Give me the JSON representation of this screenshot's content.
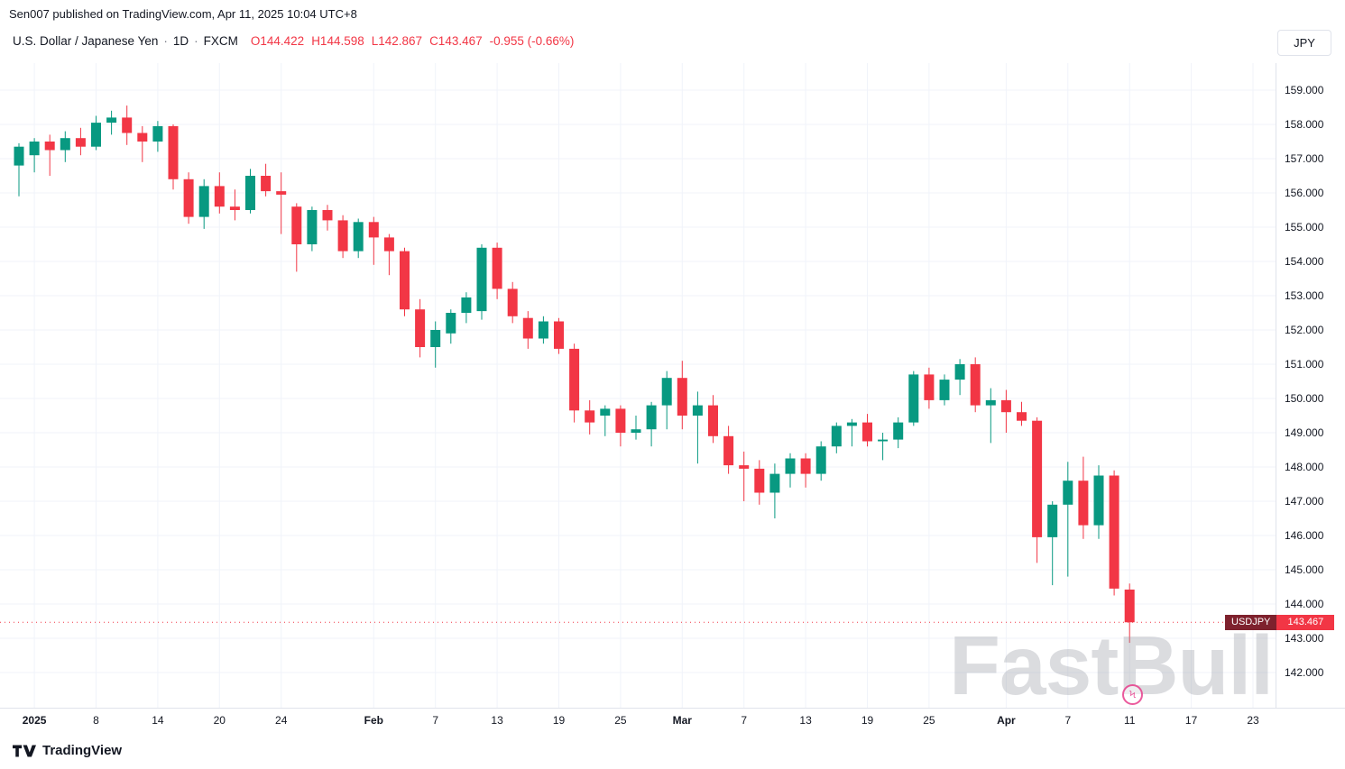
{
  "attribution": "Sen007 published on TradingView.com, Apr 11, 2025 10:04 UTC+8",
  "symbol_bar": {
    "name": "U.S. Dollar / Japanese Yen",
    "separator": "·",
    "interval": "1D",
    "exchange": "FXCM",
    "ohlc": [
      {
        "label": "O",
        "value": "144.422"
      },
      {
        "label": "H",
        "value": "144.598"
      },
      {
        "label": "L",
        "value": "142.867"
      },
      {
        "label": "C",
        "value": "143.467"
      }
    ],
    "change": "-0.955 (-0.66%)"
  },
  "currency_button": "JPY",
  "price_label": {
    "symbol": "USDJPY",
    "price": "143.467"
  },
  "watermark": "FastBull",
  "footer": {
    "brand": "TradingView"
  },
  "chart_data": {
    "type": "candlestick",
    "symbol": "USDJPY",
    "timeframe": "1D",
    "title": "U.S. Dollar / Japanese Yen · 1D · FXCM",
    "last_price": 143.467,
    "grid": true,
    "colors": {
      "up": "#089981",
      "down": "#f23645",
      "grid": "#f0f3fa",
      "axis_border": "#e0e3eb",
      "axis_text": "#131722",
      "last_price_line": "#f23645"
    },
    "y_axis": {
      "min": 142,
      "max": 159,
      "tick_step": 1,
      "tick_labels": [
        "159.000",
        "158.000",
        "157.000",
        "156.000",
        "155.000",
        "154.000",
        "153.000",
        "152.000",
        "151.000",
        "150.000",
        "149.000",
        "148.000",
        "147.000",
        "146.000",
        "145.000",
        "144.000",
        "143.000",
        "142.000"
      ]
    },
    "x_axis": {
      "labels": [
        {
          "text": "2025",
          "index": 1,
          "bold": true
        },
        {
          "text": "8",
          "index": 5,
          "bold": false
        },
        {
          "text": "14",
          "index": 9,
          "bold": false
        },
        {
          "text": "20",
          "index": 13,
          "bold": false
        },
        {
          "text": "24",
          "index": 17,
          "bold": false
        },
        {
          "text": "Feb",
          "index": 23,
          "bold": true
        },
        {
          "text": "7",
          "index": 27,
          "bold": false
        },
        {
          "text": "13",
          "index": 31,
          "bold": false
        },
        {
          "text": "19",
          "index": 35,
          "bold": false
        },
        {
          "text": "25",
          "index": 39,
          "bold": false
        },
        {
          "text": "Mar",
          "index": 43,
          "bold": true
        },
        {
          "text": "7",
          "index": 47,
          "bold": false
        },
        {
          "text": "13",
          "index": 51,
          "bold": false
        },
        {
          "text": "19",
          "index": 55,
          "bold": false
        },
        {
          "text": "25",
          "index": 59,
          "bold": false
        },
        {
          "text": "Apr",
          "index": 64,
          "bold": true
        },
        {
          "text": "7",
          "index": 68,
          "bold": false
        },
        {
          "text": "11",
          "index": 72,
          "bold": false
        },
        {
          "text": "17",
          "index": 76,
          "bold": false
        },
        {
          "text": "23",
          "index": 80,
          "bold": false
        }
      ]
    },
    "candles": [
      {
        "t": "Jan 1",
        "o": 156.8,
        "h": 157.45,
        "l": 155.9,
        "c": 157.35
      },
      {
        "t": "Jan 2",
        "o": 157.1,
        "h": 157.6,
        "l": 156.6,
        "c": 157.5
      },
      {
        "t": "Jan 3",
        "o": 157.5,
        "h": 157.7,
        "l": 156.5,
        "c": 157.25
      },
      {
        "t": "Jan 6",
        "o": 157.25,
        "h": 157.8,
        "l": 156.9,
        "c": 157.6
      },
      {
        "t": "Jan 7",
        "o": 157.6,
        "h": 157.9,
        "l": 157.1,
        "c": 157.35
      },
      {
        "t": "Jan 8",
        "o": 157.35,
        "h": 158.25,
        "l": 157.25,
        "c": 158.05
      },
      {
        "t": "Jan 9",
        "o": 158.05,
        "h": 158.4,
        "l": 157.7,
        "c": 158.2
      },
      {
        "t": "Jan 10",
        "o": 158.2,
        "h": 158.55,
        "l": 157.4,
        "c": 157.75
      },
      {
        "t": "Jan 13",
        "o": 157.75,
        "h": 157.95,
        "l": 156.9,
        "c": 157.5
      },
      {
        "t": "Jan 14",
        "o": 157.5,
        "h": 158.1,
        "l": 157.2,
        "c": 157.95
      },
      {
        "t": "Jan 15",
        "o": 157.95,
        "h": 158.0,
        "l": 156.1,
        "c": 156.4
      },
      {
        "t": "Jan 16",
        "o": 156.4,
        "h": 156.6,
        "l": 155.1,
        "c": 155.3
      },
      {
        "t": "Jan 17",
        "o": 155.3,
        "h": 156.4,
        "l": 154.95,
        "c": 156.2
      },
      {
        "t": "Jan 20",
        "o": 156.2,
        "h": 156.6,
        "l": 155.4,
        "c": 155.6
      },
      {
        "t": "Jan 21",
        "o": 155.6,
        "h": 156.1,
        "l": 155.2,
        "c": 155.5
      },
      {
        "t": "Jan 22",
        "o": 155.5,
        "h": 156.7,
        "l": 155.4,
        "c": 156.5
      },
      {
        "t": "Jan 23",
        "o": 156.5,
        "h": 156.85,
        "l": 155.9,
        "c": 156.05
      },
      {
        "t": "Jan 24",
        "o": 156.05,
        "h": 156.6,
        "l": 154.8,
        "c": 155.95
      },
      {
        "t": "Jan 27",
        "o": 155.6,
        "h": 155.7,
        "l": 153.7,
        "c": 154.5
      },
      {
        "t": "Jan 28",
        "o": 154.5,
        "h": 155.6,
        "l": 154.3,
        "c": 155.5
      },
      {
        "t": "Jan 29",
        "o": 155.5,
        "h": 155.65,
        "l": 154.9,
        "c": 155.2
      },
      {
        "t": "Jan 30",
        "o": 155.2,
        "h": 155.35,
        "l": 154.1,
        "c": 154.3
      },
      {
        "t": "Jan 31",
        "o": 154.3,
        "h": 155.25,
        "l": 154.1,
        "c": 155.15
      },
      {
        "t": "Feb 3",
        "o": 155.15,
        "h": 155.3,
        "l": 153.9,
        "c": 154.7
      },
      {
        "t": "Feb 4",
        "o": 154.7,
        "h": 154.8,
        "l": 153.6,
        "c": 154.3
      },
      {
        "t": "Feb 5",
        "o": 154.3,
        "h": 154.4,
        "l": 152.4,
        "c": 152.6
      },
      {
        "t": "Feb 6",
        "o": 152.6,
        "h": 152.9,
        "l": 151.2,
        "c": 151.5
      },
      {
        "t": "Feb 7",
        "o": 151.5,
        "h": 152.25,
        "l": 150.9,
        "c": 152.0
      },
      {
        "t": "Feb 10",
        "o": 151.9,
        "h": 152.6,
        "l": 151.6,
        "c": 152.5
      },
      {
        "t": "Feb 11",
        "o": 152.5,
        "h": 153.1,
        "l": 152.2,
        "c": 152.95
      },
      {
        "t": "Feb 12",
        "o": 152.55,
        "h": 154.5,
        "l": 152.3,
        "c": 154.4
      },
      {
        "t": "Feb 13",
        "o": 154.4,
        "h": 154.55,
        "l": 152.9,
        "c": 153.2
      },
      {
        "t": "Feb 14",
        "o": 153.2,
        "h": 153.4,
        "l": 152.2,
        "c": 152.4
      },
      {
        "t": "Feb 17",
        "o": 152.35,
        "h": 152.55,
        "l": 151.45,
        "c": 151.75
      },
      {
        "t": "Feb 18",
        "o": 151.75,
        "h": 152.4,
        "l": 151.6,
        "c": 152.25
      },
      {
        "t": "Feb 19",
        "o": 152.25,
        "h": 152.35,
        "l": 151.3,
        "c": 151.45
      },
      {
        "t": "Feb 20",
        "o": 151.45,
        "h": 151.6,
        "l": 149.3,
        "c": 149.65
      },
      {
        "t": "Feb 21",
        "o": 149.65,
        "h": 149.95,
        "l": 148.95,
        "c": 149.3
      },
      {
        "t": "Feb 24",
        "o": 149.5,
        "h": 149.8,
        "l": 148.9,
        "c": 149.7
      },
      {
        "t": "Feb 25",
        "o": 149.7,
        "h": 149.8,
        "l": 148.6,
        "c": 149.0
      },
      {
        "t": "Feb 26",
        "o": 149.0,
        "h": 149.5,
        "l": 148.8,
        "c": 149.1
      },
      {
        "t": "Feb 27",
        "o": 149.1,
        "h": 149.9,
        "l": 148.6,
        "c": 149.8
      },
      {
        "t": "Feb 28",
        "o": 149.8,
        "h": 150.8,
        "l": 149.1,
        "c": 150.6
      },
      {
        "t": "Mar 3",
        "o": 150.6,
        "h": 151.1,
        "l": 149.1,
        "c": 149.5
      },
      {
        "t": "Mar 4",
        "o": 149.5,
        "h": 150.2,
        "l": 148.1,
        "c": 149.8
      },
      {
        "t": "Mar 5",
        "o": 149.8,
        "h": 150.1,
        "l": 148.7,
        "c": 148.9
      },
      {
        "t": "Mar 6",
        "o": 148.9,
        "h": 149.2,
        "l": 147.8,
        "c": 148.05
      },
      {
        "t": "Mar 7",
        "o": 148.05,
        "h": 148.45,
        "l": 147.0,
        "c": 147.95
      },
      {
        "t": "Mar 10",
        "o": 147.95,
        "h": 148.2,
        "l": 146.9,
        "c": 147.25
      },
      {
        "t": "Mar 11",
        "o": 147.25,
        "h": 148.1,
        "l": 146.5,
        "c": 147.8
      },
      {
        "t": "Mar 12",
        "o": 147.8,
        "h": 148.4,
        "l": 147.4,
        "c": 148.25
      },
      {
        "t": "Mar 13",
        "o": 148.25,
        "h": 148.4,
        "l": 147.4,
        "c": 147.8
      },
      {
        "t": "Mar 14",
        "o": 147.8,
        "h": 148.75,
        "l": 147.6,
        "c": 148.6
      },
      {
        "t": "Mar 17",
        "o": 148.6,
        "h": 149.3,
        "l": 148.4,
        "c": 149.2
      },
      {
        "t": "Mar 18",
        "o": 149.2,
        "h": 149.4,
        "l": 148.6,
        "c": 149.3
      },
      {
        "t": "Mar 19",
        "o": 149.3,
        "h": 149.55,
        "l": 148.6,
        "c": 148.75
      },
      {
        "t": "Mar 20",
        "o": 148.75,
        "h": 149.0,
        "l": 148.2,
        "c": 148.8
      },
      {
        "t": "Mar 21",
        "o": 148.8,
        "h": 149.45,
        "l": 148.55,
        "c": 149.3
      },
      {
        "t": "Mar 24",
        "o": 149.3,
        "h": 150.8,
        "l": 149.2,
        "c": 150.7
      },
      {
        "t": "Mar 25",
        "o": 150.7,
        "h": 150.9,
        "l": 149.7,
        "c": 149.95
      },
      {
        "t": "Mar 26",
        "o": 149.95,
        "h": 150.7,
        "l": 149.8,
        "c": 150.55
      },
      {
        "t": "Mar 27",
        "o": 150.55,
        "h": 151.15,
        "l": 150.1,
        "c": 151.0
      },
      {
        "t": "Mar 28",
        "o": 151.0,
        "h": 151.2,
        "l": 149.6,
        "c": 149.8
      },
      {
        "t": "Mar 31",
        "o": 149.8,
        "h": 150.3,
        "l": 148.7,
        "c": 149.95
      },
      {
        "t": "Apr 1",
        "o": 149.95,
        "h": 150.25,
        "l": 149.0,
        "c": 149.6
      },
      {
        "t": "Apr 2",
        "o": 149.6,
        "h": 149.9,
        "l": 149.2,
        "c": 149.35
      },
      {
        "t": "Apr 3",
        "o": 149.35,
        "h": 149.45,
        "l": 145.2,
        "c": 145.95
      },
      {
        "t": "Apr 4",
        "o": 145.95,
        "h": 147.0,
        "l": 144.55,
        "c": 146.9
      },
      {
        "t": "Apr 7",
        "o": 146.9,
        "h": 148.15,
        "l": 144.8,
        "c": 147.6
      },
      {
        "t": "Apr 8",
        "o": 147.6,
        "h": 148.3,
        "l": 145.9,
        "c": 146.3
      },
      {
        "t": "Apr 9",
        "o": 146.3,
        "h": 148.05,
        "l": 145.9,
        "c": 147.75
      },
      {
        "t": "Apr 10",
        "o": 147.75,
        "h": 147.9,
        "l": 144.25,
        "c": 144.45
      },
      {
        "t": "Apr 11",
        "o": 144.422,
        "h": 144.598,
        "l": 142.867,
        "c": 143.467
      }
    ]
  }
}
